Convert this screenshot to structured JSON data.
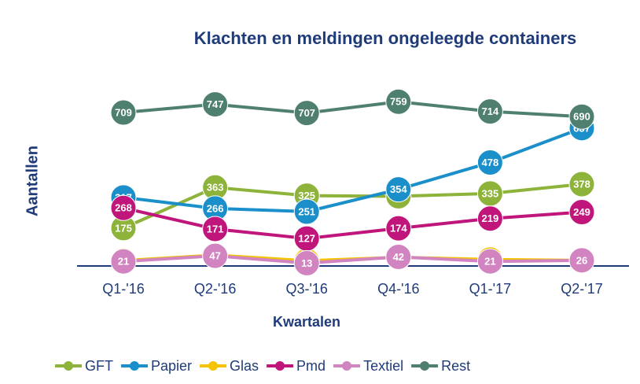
{
  "chart_data": {
    "type": "line",
    "title": "Klachten en meldingen ongeleegde containers",
    "x_label": "Kwartalen",
    "y_label": "Aantallen",
    "categories": [
      "Q1-'16",
      "Q2-'16",
      "Q3-'16",
      "Q4-'16",
      "Q1-'17",
      "Q2-'17"
    ],
    "ylim": [
      0,
      800
    ],
    "series": [
      {
        "name": "GFT",
        "color": "#8db33a",
        "values": [
          175,
          363,
          325,
          322,
          335,
          378
        ]
      },
      {
        "name": "Papier",
        "color": "#1a8fc9",
        "values": [
          317,
          266,
          251,
          354,
          478,
          637
        ]
      },
      {
        "name": "Glas",
        "color": "#f5c400",
        "values": [
          25,
          50,
          24,
          40,
          30,
          26
        ]
      },
      {
        "name": "Pmd",
        "color": "#c0157b",
        "values": [
          268,
          171,
          127,
          174,
          219,
          249
        ]
      },
      {
        "name": "Textiel",
        "color": "#d184bf",
        "values": [
          21,
          47,
          13,
          42,
          21,
          26
        ]
      },
      {
        "name": "Rest",
        "color": "#4f7f6e",
        "values": [
          709,
          747,
          707,
          759,
          714,
          690
        ]
      }
    ]
  }
}
